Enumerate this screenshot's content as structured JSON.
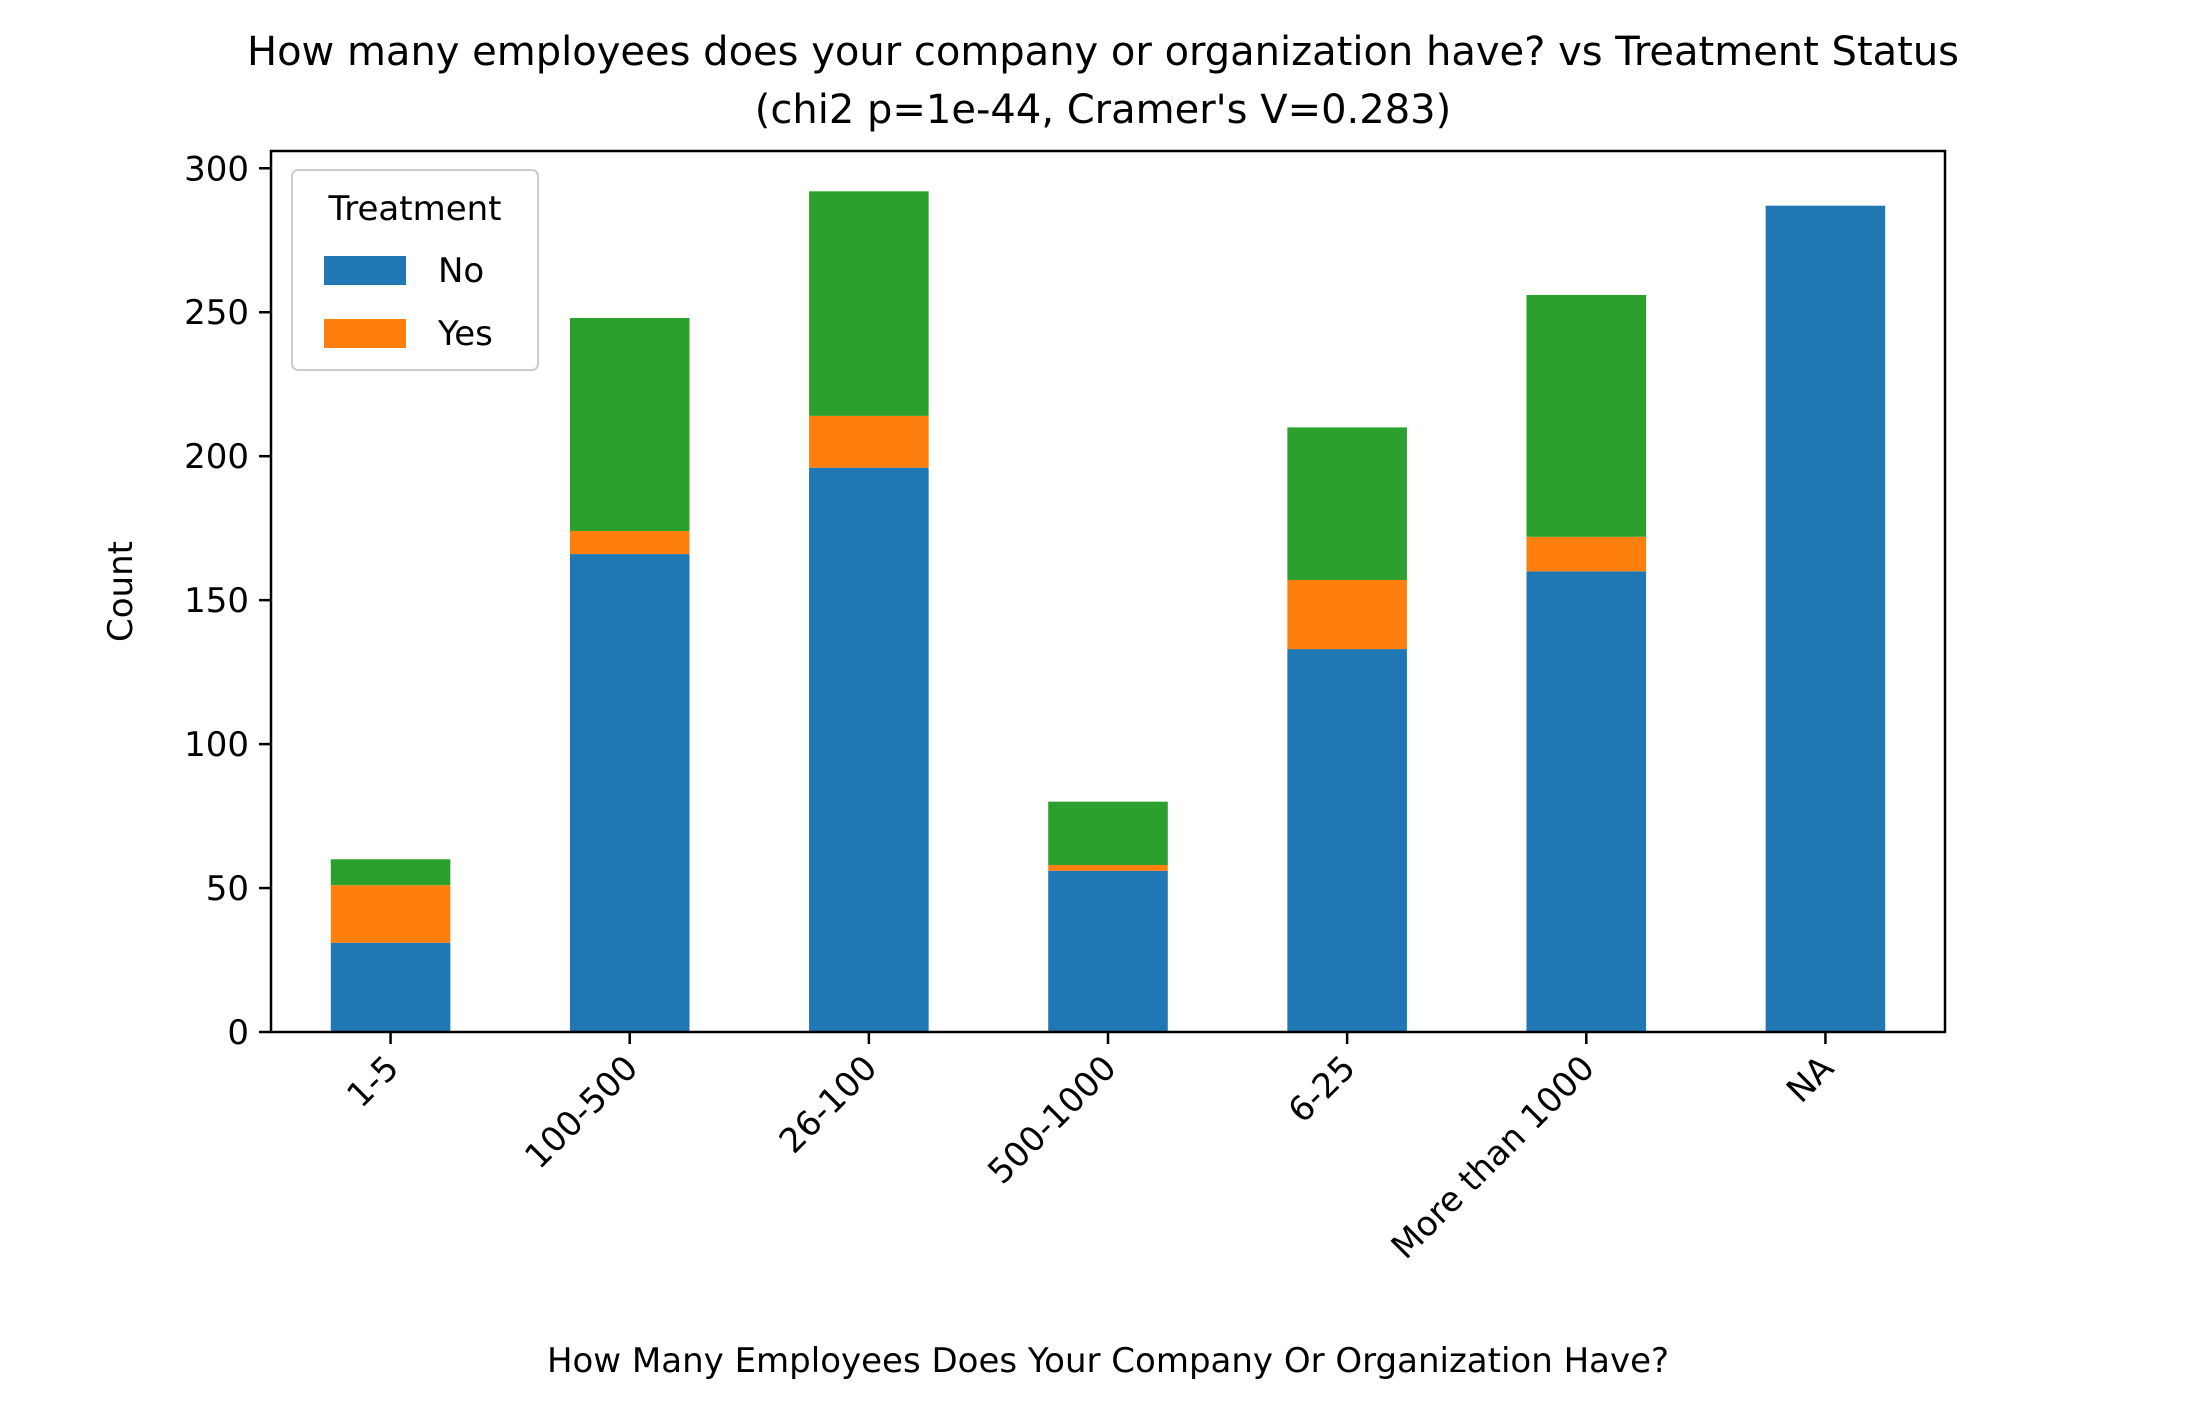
{
  "chart_data": {
    "type": "bar",
    "stacked": true,
    "title": "How many employees does your company or organization have? vs Treatment Status",
    "subtitle": "(chi2 p=1e-44, Cramer's V=0.283)",
    "xlabel": "How Many Employees Does Your Company Or Organization Have?",
    "ylabel": "Count",
    "ylim": [
      0,
      306
    ],
    "yticks": [
      0,
      50,
      100,
      150,
      200,
      250,
      300
    ],
    "categories": [
      "1-5",
      "100-500",
      "26-100",
      "500-1000",
      "6-25",
      "More than 1000",
      "NA"
    ],
    "series": [
      {
        "name": "No",
        "color": "#1f77b4",
        "values": [
          31,
          166,
          196,
          56,
          133,
          160,
          287
        ]
      },
      {
        "name": "Yes",
        "color": "#ff7f0e",
        "values": [
          20,
          8,
          18,
          2,
          24,
          12,
          0
        ]
      },
      {
        "color": "#2ca02c",
        "values": [
          9,
          74,
          78,
          22,
          53,
          84,
          0
        ]
      }
    ],
    "legend": {
      "title": "Treatment",
      "entries": [
        "No",
        "Yes"
      ],
      "placement": "top-left"
    },
    "grid": false
  }
}
